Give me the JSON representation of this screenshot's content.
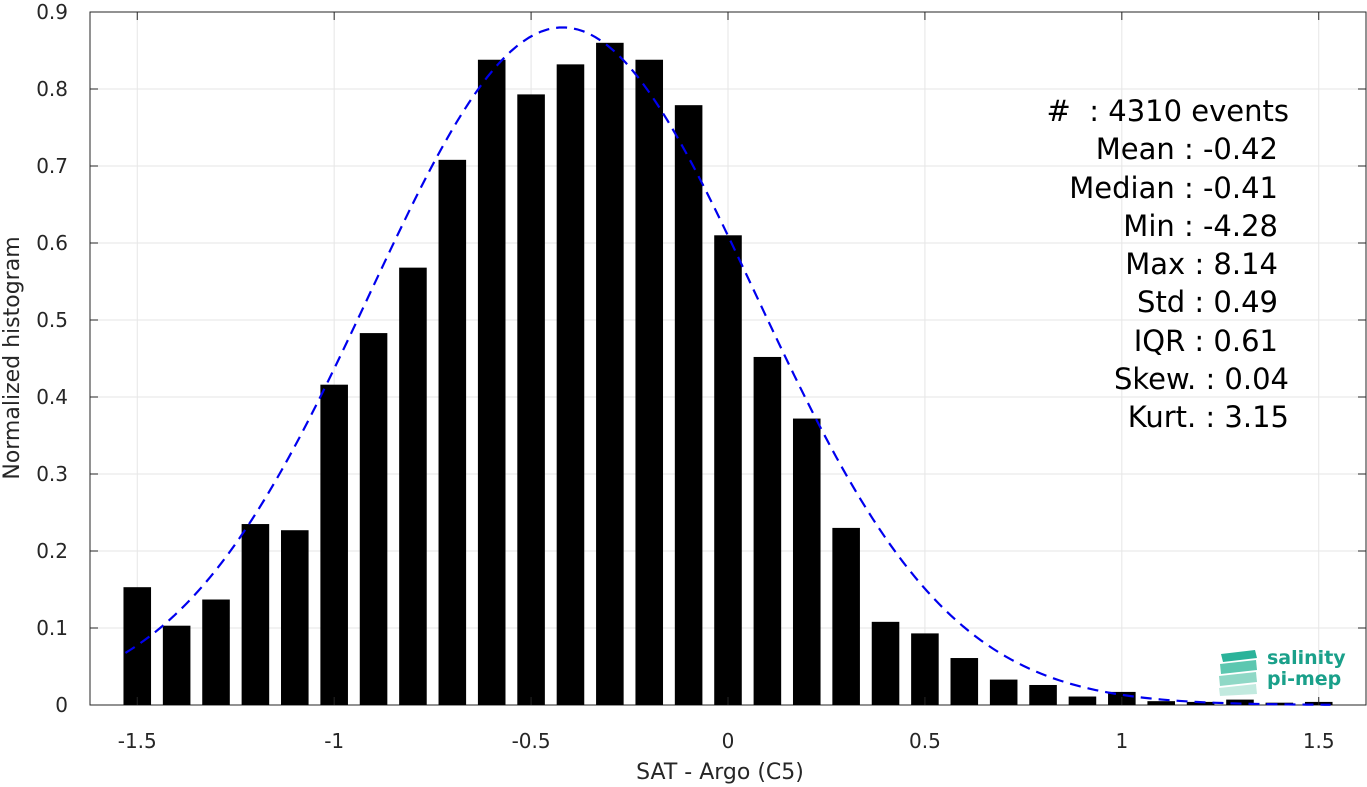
{
  "chart_data": {
    "type": "bar",
    "xlabel": "SAT - Argo (C5)",
    "ylabel": "Normalized histogram",
    "xlim": [
      -1.62,
      1.62
    ],
    "ylim": [
      0,
      0.9
    ],
    "xticks": [
      -1.5,
      -1,
      -0.5,
      0,
      0.5,
      1,
      1.5
    ],
    "xtick_labels": [
      "-1.5",
      "-1",
      "-0.5",
      "0",
      "0.5",
      "1",
      "1.5"
    ],
    "yticks": [
      0,
      0.1,
      0.2,
      0.3,
      0.4,
      0.5,
      0.6,
      0.7,
      0.8,
      0.9
    ],
    "ytick_labels": [
      "0",
      "0.1",
      "0.2",
      "0.3",
      "0.4",
      "0.5",
      "0.6",
      "0.7",
      "0.8",
      "0.9"
    ],
    "grid": true,
    "bar_color": "#000000",
    "bin_width": 0.1,
    "bins": [
      -1.5,
      -1.4,
      -1.3,
      -1.2,
      -1.1,
      -1.0,
      -0.9,
      -0.8,
      -0.7,
      -0.6,
      -0.5,
      -0.4,
      -0.3,
      -0.2,
      -0.1,
      0.0,
      0.1,
      0.2,
      0.3,
      0.4,
      0.5,
      0.6,
      0.7,
      0.8,
      0.9,
      1.0,
      1.1,
      1.2,
      1.3,
      1.4,
      1.5
    ],
    "values": [
      0.153,
      0.103,
      0.137,
      0.235,
      0.227,
      0.416,
      0.483,
      0.568,
      0.708,
      0.838,
      0.793,
      0.832,
      0.86,
      0.838,
      0.779,
      0.61,
      0.452,
      0.372,
      0.23,
      0.108,
      0.093,
      0.061,
      0.033,
      0.026,
      0.011,
      0.017,
      0.005,
      0.004,
      0.007,
      0.003,
      0.004
    ],
    "fit_curve": {
      "style": "dashed",
      "color": "#0000ee",
      "mean": -0.42,
      "std": 0.49,
      "peak": 0.88,
      "x_range": [
        -1.53,
        1.53
      ]
    }
  },
  "stats": {
    "count": "#  : 4310 events",
    "mean": "Mean : -0.42",
    "median": "Median : -0.41",
    "min": "Min : -4.28",
    "max": "Max : 8.14",
    "std": "Std : 0.49",
    "iqr": "IQR : 0.61",
    "skew": "Skew. : 0.04",
    "kurt": "Kurt. : 3.15"
  },
  "logo": {
    "line1": "salinity",
    "line2": "pi-mep",
    "color": "#1aa08a"
  }
}
